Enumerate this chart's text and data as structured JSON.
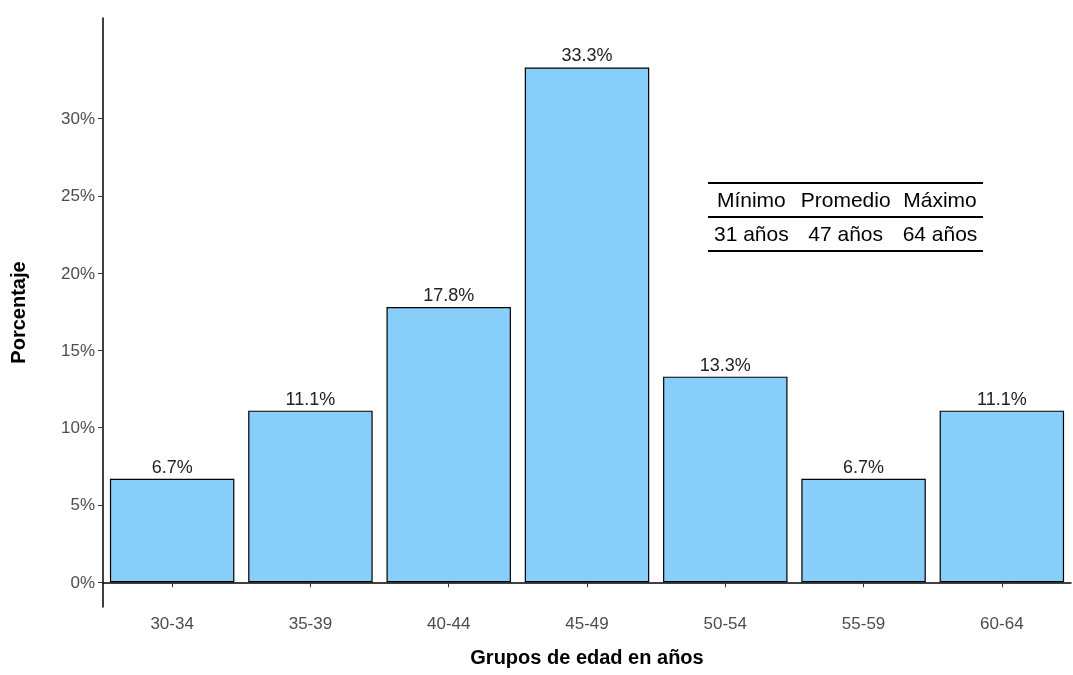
{
  "chart_data": {
    "type": "bar",
    "xlabel": "Grupos de edad en años",
    "ylabel": "Porcentaje",
    "categories": [
      "30-34",
      "35-39",
      "40-44",
      "45-49",
      "50-54",
      "55-59",
      "60-64"
    ],
    "values": [
      6.7,
      11.1,
      17.8,
      33.3,
      13.3,
      6.7,
      11.1
    ],
    "value_labels": [
      "6.7%",
      "11.1%",
      "17.8%",
      "33.3%",
      "13.3%",
      "6.7%",
      "11.1%"
    ],
    "color": "#87cefa",
    "ylim": [
      -1.6,
      36.5
    ],
    "yticks": [
      {
        "value": 0,
        "label": "0%"
      },
      {
        "value": 5,
        "label": "5%"
      },
      {
        "value": 10,
        "label": "10%"
      },
      {
        "value": 15,
        "label": "15%"
      },
      {
        "value": 20,
        "label": "20%"
      },
      {
        "value": 25,
        "label": "25%"
      },
      {
        "value": 30,
        "label": "30%"
      }
    ],
    "grid": false,
    "annotations": [
      "Mínimo",
      "Promedio",
      "Máximo",
      "31 años",
      "47 años",
      "64 años"
    ]
  }
}
